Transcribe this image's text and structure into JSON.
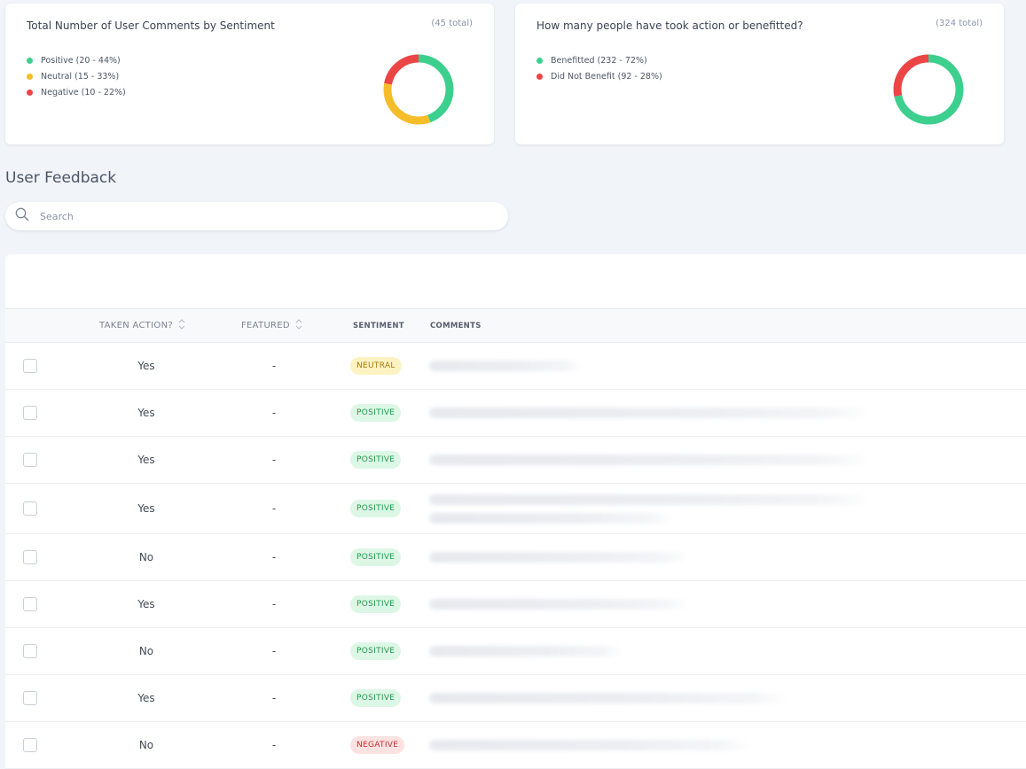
{
  "sentiment_card": {
    "title": "Total Number of User Comments by Sentiment",
    "total": "(45 total)",
    "legend": [
      {
        "label": "Positive (20 - 44%)",
        "color": "#3ccf8e"
      },
      {
        "label": "Neutral (15 - 33%)",
        "color": "#f6bd2b"
      },
      {
        "label": "Negative (10 - 22%)",
        "color": "#ec4545"
      }
    ]
  },
  "benefit_card": {
    "title": "How many people have took action or benefitted?",
    "total": "(324 total)",
    "legend": [
      {
        "label": "Benefitted (232 - 72%)",
        "color": "#3ccf8e"
      },
      {
        "label": "Did Not Benefit (92 - 28%)",
        "color": "#ec4545"
      }
    ]
  },
  "chart_data": [
    {
      "type": "pie",
      "variant": "donut",
      "title": "Total Number of User Comments by Sentiment",
      "categories": [
        "Positive",
        "Neutral",
        "Negative"
      ],
      "values": [
        20,
        15,
        10
      ],
      "colors": [
        "#3ccf8e",
        "#f6bd2b",
        "#ec4545"
      ]
    },
    {
      "type": "pie",
      "variant": "donut",
      "title": "How many people have took action or benefitted?",
      "categories": [
        "Benefitted",
        "Did Not Benefit"
      ],
      "values": [
        232,
        92
      ],
      "colors": [
        "#3ccf8e",
        "#ec4545"
      ]
    }
  ],
  "feedback": {
    "title": "User Feedback",
    "search_placeholder": "Search"
  },
  "table": {
    "headers": {
      "taken_action": "TAKEN ACTION?",
      "featured": "FEATURED",
      "sentiment": "SENTIMENT",
      "comments": "COMMENTS"
    },
    "rows": [
      {
        "taken_action": "Yes",
        "featured": "-",
        "sentiment": "NEUTRAL",
        "sentiment_class": "neutral"
      },
      {
        "taken_action": "Yes",
        "featured": "-",
        "sentiment": "POSITIVE",
        "sentiment_class": "positive"
      },
      {
        "taken_action": "Yes",
        "featured": "-",
        "sentiment": "POSITIVE",
        "sentiment_class": "positive"
      },
      {
        "taken_action": "Yes",
        "featured": "-",
        "sentiment": "POSITIVE",
        "sentiment_class": "positive"
      },
      {
        "taken_action": "No",
        "featured": "-",
        "sentiment": "POSITIVE",
        "sentiment_class": "positive"
      },
      {
        "taken_action": "Yes",
        "featured": "-",
        "sentiment": "POSITIVE",
        "sentiment_class": "positive"
      },
      {
        "taken_action": "No",
        "featured": "-",
        "sentiment": "POSITIVE",
        "sentiment_class": "positive"
      },
      {
        "taken_action": "Yes",
        "featured": "-",
        "sentiment": "POSITIVE",
        "sentiment_class": "positive"
      },
      {
        "taken_action": "No",
        "featured": "-",
        "sentiment": "NEGATIVE",
        "sentiment_class": "negative"
      }
    ]
  }
}
